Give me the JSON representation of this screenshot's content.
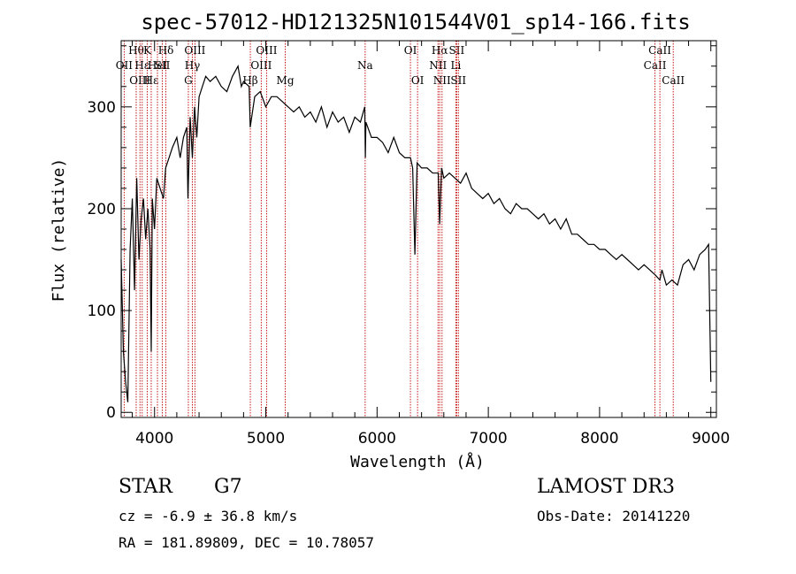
{
  "chart_data": {
    "type": "line",
    "title": "spec-57012-HD121325N101544V01_sp14-166.fits",
    "xlabel": "Wavelength (Å)",
    "ylabel": "Flux (relative)",
    "xlim": [
      3700,
      9050
    ],
    "ylim": [
      -5,
      365
    ],
    "x_ticks": [
      4000,
      5000,
      6000,
      7000,
      8000,
      9000
    ],
    "y_ticks": [
      0,
      100,
      200,
      300
    ],
    "grid": false,
    "series": [
      {
        "x": [
          3700,
          3720,
          3740,
          3760,
          3780,
          3800,
          3820,
          3840,
          3860,
          3880,
          3900,
          3920,
          3940,
          3960,
          3970,
          3980,
          4000,
          4020,
          4050,
          4080,
          4100,
          4130,
          4160,
          4200,
          4230,
          4260,
          4290,
          4300,
          4320,
          4340,
          4360,
          4380,
          4400,
          4430,
          4460,
          4500,
          4550,
          4600,
          4650,
          4700,
          4750,
          4780,
          4800,
          4850,
          4860,
          4900,
          4950,
          5000,
          5050,
          5100,
          5150,
          5200,
          5250,
          5300,
          5350,
          5400,
          5450,
          5500,
          5550,
          5600,
          5650,
          5700,
          5750,
          5800,
          5850,
          5889,
          5895,
          5900,
          5950,
          6000,
          6050,
          6100,
          6150,
          6200,
          6250,
          6300,
          6320,
          6340,
          6360,
          6400,
          6450,
          6500,
          6550,
          6563,
          6580,
          6600,
          6650,
          6700,
          6750,
          6800,
          6850,
          6900,
          6950,
          7000,
          7050,
          7100,
          7150,
          7200,
          7250,
          7300,
          7350,
          7400,
          7450,
          7500,
          7550,
          7600,
          7650,
          7700,
          7750,
          7800,
          7850,
          7900,
          7950,
          8000,
          8050,
          8100,
          8150,
          8200,
          8250,
          8300,
          8350,
          8400,
          8450,
          8500,
          8542,
          8560,
          8600,
          8650,
          8700,
          8750,
          8800,
          8850,
          8900,
          8950,
          8980,
          9000
        ],
        "values": [
          150,
          60,
          30,
          10,
          160,
          210,
          120,
          230,
          150,
          190,
          210,
          170,
          200,
          160,
          60,
          210,
          180,
          230,
          220,
          210,
          240,
          250,
          260,
          270,
          250,
          270,
          280,
          210,
          290,
          250,
          300,
          270,
          310,
          320,
          330,
          325,
          330,
          320,
          315,
          330,
          340,
          320,
          325,
          320,
          280,
          310,
          315,
          300,
          310,
          310,
          305,
          300,
          295,
          300,
          290,
          295,
          285,
          300,
          280,
          295,
          285,
          290,
          275,
          290,
          285,
          300,
          250,
          285,
          270,
          270,
          265,
          255,
          270,
          255,
          250,
          250,
          240,
          155,
          245,
          240,
          240,
          235,
          235,
          185,
          240,
          230,
          235,
          230,
          225,
          235,
          220,
          215,
          210,
          215,
          205,
          210,
          200,
          195,
          205,
          200,
          200,
          195,
          190,
          195,
          185,
          190,
          180,
          190,
          175,
          175,
          170,
          165,
          165,
          160,
          160,
          155,
          150,
          155,
          150,
          145,
          140,
          145,
          140,
          135,
          130,
          140,
          125,
          130,
          125,
          145,
          150,
          140,
          155,
          160,
          165,
          30
        ]
      }
    ],
    "line_markers": [
      {
        "x": 3727,
        "label": "OII",
        "row": 1
      },
      {
        "x": 3835,
        "label": "Hθ",
        "row": 0
      },
      {
        "x": 3869,
        "label": "OIII",
        "row": 2
      },
      {
        "x": 3889,
        "label": "Hε",
        "row": 1
      },
      {
        "x": 3934,
        "label": "K",
        "row": 0
      },
      {
        "x": 3970,
        "label": "Hε",
        "row": 2
      },
      {
        "x": 4026,
        "label": "HeI",
        "row": 1
      },
      {
        "x": 4070,
        "label": "SII",
        "row": 1
      },
      {
        "x": 4102,
        "label": "Hδ",
        "row": 0
      },
      {
        "x": 4304,
        "label": "G",
        "row": 2
      },
      {
        "x": 4340,
        "label": "Hγ",
        "row": 1
      },
      {
        "x": 4363,
        "label": "OIII",
        "row": 0
      },
      {
        "x": 4861,
        "label": "Hβ",
        "row": 2
      },
      {
        "x": 4959,
        "label": "OIII",
        "row": 1
      },
      {
        "x": 5007,
        "label": "OIII",
        "row": 0
      },
      {
        "x": 5175,
        "label": "Mg",
        "row": 2
      },
      {
        "x": 5893,
        "label": "Na",
        "row": 1
      },
      {
        "x": 6300,
        "label": "OI",
        "row": 0
      },
      {
        "x": 6364,
        "label": "OI",
        "row": 2
      },
      {
        "x": 6548,
        "label": "NII",
        "row": 1
      },
      {
        "x": 6563,
        "label": "Hα",
        "row": 0
      },
      {
        "x": 6584,
        "label": "NII",
        "row": 2
      },
      {
        "x": 6708,
        "label": "Li",
        "row": 1
      },
      {
        "x": 6716,
        "label": "SII",
        "row": 0
      },
      {
        "x": 6731,
        "label": "SII",
        "row": 2
      },
      {
        "x": 8498,
        "label": "CaII",
        "row": 1
      },
      {
        "x": 8542,
        "label": "CaII",
        "row": 0
      },
      {
        "x": 8662,
        "label": "CaII",
        "row": 2
      }
    ]
  },
  "info": {
    "object_type": "STAR",
    "subclass": "G7",
    "survey": "LAMOST DR3",
    "cz": "cz = -6.9 ± 36.8 km/s",
    "obs_date": "Obs-Date: 20141220",
    "coords": "RA = 181.89809, DEC =  10.78057"
  }
}
